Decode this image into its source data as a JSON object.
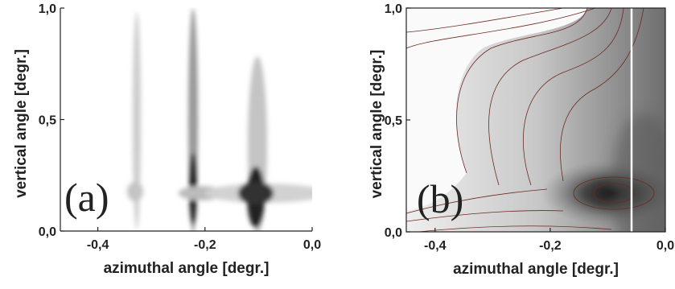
{
  "chart_data": [
    {
      "type": "contour",
      "panel_label": "(a)",
      "xlabel": "azimuthal angle [degr.]",
      "ylabel": "vertical angle [degr.]",
      "xlim": [
        -0.47,
        0
      ],
      "ylim": [
        0,
        1
      ],
      "xticks": [
        {
          "value": -0.4,
          "label": "-0,4"
        },
        {
          "value": -0.2,
          "label": "-0,2"
        },
        {
          "value": 0,
          "label": "0,0"
        }
      ],
      "yticks": [
        {
          "value": 0,
          "label": "0,0"
        },
        {
          "value": 0.5,
          "label": "0,5"
        },
        {
          "value": 1,
          "label": "1,0"
        }
      ],
      "frame": false
    },
    {
      "type": "contour",
      "panel_label": "(b)",
      "xlabel": "azimuthal angle [degr.]",
      "ylabel": "vertical angle [degr.]",
      "xlim": [
        -0.45,
        0
      ],
      "ylim": [
        0,
        1
      ],
      "xticks": [
        {
          "value": -0.4,
          "label": "-0,4"
        },
        {
          "value": -0.2,
          "label": "-0,2"
        },
        {
          "value": 0,
          "label": "0,0"
        }
      ],
      "yticks": [
        {
          "value": 0,
          "label": "0,0"
        },
        {
          "value": 0.5,
          "label": "0,5"
        },
        {
          "value": 1,
          "label": "1,0"
        }
      ],
      "frame": true
    }
  ]
}
